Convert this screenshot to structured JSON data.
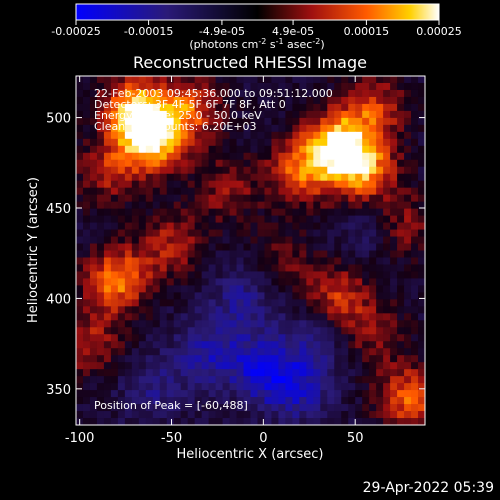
{
  "chart_data": {
    "type": "heatmap",
    "title": "Reconstructed RHESSI Image",
    "xlabel": "Heliocentric X (arcsec)",
    "ylabel": "Heliocentric Y (arcsec)",
    "xlim": [
      -102,
      88
    ],
    "ylim": [
      330,
      523
    ],
    "x_ticks": [
      "-100",
      "-50",
      "0",
      "50"
    ],
    "x_tick_values": [
      -100,
      -50,
      0,
      50
    ],
    "y_ticks": [
      "350",
      "400",
      "450",
      "500"
    ],
    "y_tick_values": [
      350,
      400,
      450,
      500
    ],
    "colorbar": {
      "range": [
        -0.00025,
        0.00025
      ],
      "tick_labels": [
        "-0.00025",
        "-0.00015",
        "-4.9e-05",
        "4.9e-05",
        "0.00015",
        "0.00025"
      ],
      "tick_values": [
        -0.00025,
        -0.00015,
        -4.9e-05,
        4.9e-05,
        0.00015,
        0.00025
      ],
      "unit_label": "(photons cm",
      "unit_exp1": "-2",
      "unit_mid": " s",
      "unit_exp2": "-1",
      "unit_mid2": " asec",
      "unit_exp3": "-2",
      "unit_end": ")"
    },
    "annotations": [
      "22-Feb-2003 09:45:36.000  to 09:51:12.000",
      "Detectors: 3F 4F 5F 6F 7F 8F, Att 0",
      "Energy Range: 25.0 - 50.0 keV",
      "Clean      Total counts: 6.20E+03"
    ],
    "peak_label": "Position of Peak = [-60,488]",
    "bright_regions": [
      {
        "x": -70,
        "y": 505,
        "value": 0.00022
      },
      {
        "x": -60,
        "y": 488,
        "value": 0.00025
      },
      {
        "x": -85,
        "y": 470,
        "value": 0.00012
      },
      {
        "x": -40,
        "y": 505,
        "value": 0.00015
      },
      {
        "x": -20,
        "y": 460,
        "value": 0.0001
      },
      {
        "x": 20,
        "y": 470,
        "value": 0.00017
      },
      {
        "x": 40,
        "y": 485,
        "value": 0.00024
      },
      {
        "x": 55,
        "y": 470,
        "value": 0.0002
      },
      {
        "x": 60,
        "y": 505,
        "value": 0.00014
      },
      {
        "x": 75,
        "y": 440,
        "value": 0.00012
      },
      {
        "x": -80,
        "y": 410,
        "value": 0.0002
      },
      {
        "x": -50,
        "y": 430,
        "value": 0.00012
      },
      {
        "x": 40,
        "y": 400,
        "value": 0.00015
      },
      {
        "x": 10,
        "y": 420,
        "value": 8e-05
      },
      {
        "x": 80,
        "y": 345,
        "value": 0.00018
      },
      {
        "x": 60,
        "y": 380,
        "value": 9e-05
      },
      {
        "x": -95,
        "y": 375,
        "value": 0.00012
      }
    ],
    "dark_regions": [
      {
        "x": -30,
        "y": 370,
        "value": -0.00012
      },
      {
        "x": 0,
        "y": 360,
        "value": -0.00015
      },
      {
        "x": 20,
        "y": 350,
        "value": -0.00012
      },
      {
        "x": -10,
        "y": 400,
        "value": -0.0001
      },
      {
        "x": 60,
        "y": 440,
        "value": -8e-05
      },
      {
        "x": -60,
        "y": 350,
        "value": -8e-05
      },
      {
        "x": 30,
        "y": 380,
        "value": -9e-05
      }
    ]
  },
  "timestamp": "29-Apr-2022 05:39"
}
